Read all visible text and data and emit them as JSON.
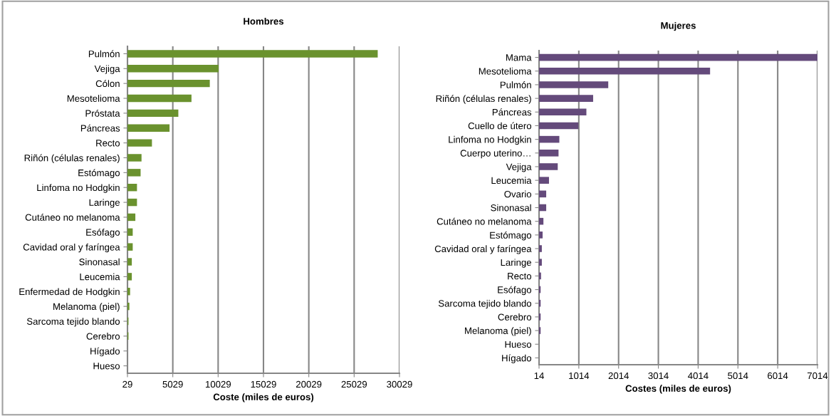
{
  "chart_data": [
    {
      "type": "bar",
      "orientation": "horizontal",
      "title": "Hombres",
      "xlabel": "Coste (miles de euros)",
      "categories": [
        "Pulmón",
        "Vejiga",
        "Cólon",
        "Mesotelioma",
        "Próstata",
        "Páncreas",
        "Recto",
        "Riñón (células renales)",
        "Estómago",
        "Linfoma no Hodgkin",
        "Laringe",
        "Cutáneo no melanoma",
        "Esófago",
        "Cavidad oral y faríngea",
        "Sinonasal",
        "Leucemia",
        "Enfermedad de Hodgkin",
        "Melanoma (piel)",
        "Sarcoma tejido blando",
        "Cerebro",
        "Hígado",
        "Hueso"
      ],
      "series": [
        {
          "color": "#6a922e",
          "values": [
            27600,
            10050,
            9080,
            7060,
            5610,
            4640,
            2700,
            1550,
            1450,
            1050,
            1050,
            870,
            580,
            580,
            480,
            480,
            290,
            210,
            110,
            110,
            null,
            null
          ]
        }
      ],
      "xlim": [
        29,
        30029
      ],
      "xticks": [
        29,
        5029,
        10029,
        15029,
        20029,
        25029,
        30029
      ],
      "grid": "x",
      "legend": false
    },
    {
      "type": "bar",
      "orientation": "horizontal",
      "title": "Mujeres",
      "xlabel": "Costes (miles de euros)",
      "categories": [
        "Mama",
        "Mesotelioma",
        "Pulmón",
        "Riñón (células renales)",
        "Páncreas",
        "Cuello de útero",
        "Linfoma no Hodgkin",
        "Cuerpo uterino…",
        "Vejiga",
        "Leucemia",
        "Ovario",
        "Sinonasal",
        "Cutáneo no melanoma",
        "Estómago",
        "Cavidad oral y faríngea",
        "Laringe",
        "Recto",
        "Esófago",
        "Sarcoma tejido blando",
        "Cerebro",
        "Melanoma (piel)",
        "Hueso",
        "Hígado"
      ],
      "series": [
        {
          "color": "#644a7b",
          "values": [
            7000,
            4300,
            1740,
            1360,
            1190,
            990,
            510,
            490,
            470,
            250,
            180,
            180,
            110,
            90,
            70,
            70,
            50,
            40,
            40,
            40,
            40,
            null,
            null
          ]
        }
      ],
      "xlim": [
        14,
        7014
      ],
      "xticks": [
        14,
        1014,
        2014,
        3014,
        4014,
        5014,
        6014,
        7014
      ],
      "grid": "x",
      "legend": false
    }
  ]
}
